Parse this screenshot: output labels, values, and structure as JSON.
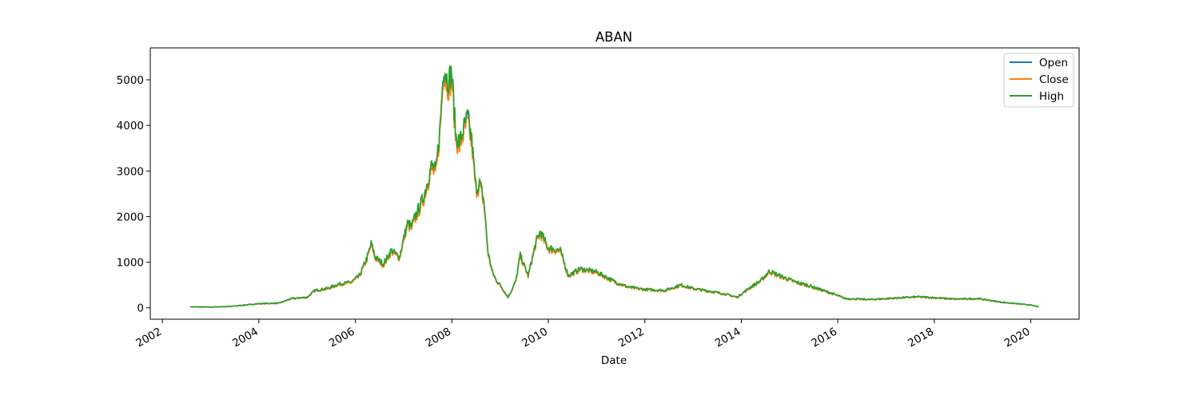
{
  "chart_data": {
    "type": "line",
    "title": "ABAN",
    "xlabel": "Date",
    "ylabel": "",
    "x_tick_labels": [
      "2002",
      "2004",
      "2006",
      "2008",
      "2010",
      "2012",
      "2014",
      "2016",
      "2018",
      "2020"
    ],
    "y_tick_labels": [
      "0",
      "1000",
      "2000",
      "3000",
      "4000",
      "5000"
    ],
    "y_ticks": [
      0,
      1000,
      2000,
      3000,
      4000,
      5000
    ],
    "xlim": [
      "2001-10-01",
      "2021-01-01"
    ],
    "ylim": [
      -250,
      5700
    ],
    "legend": {
      "position": "top-right",
      "entries": [
        "Open",
        "Close",
        "High"
      ]
    },
    "grid": false,
    "colors": {
      "Open": "#1f77b4",
      "Close": "#ff7f0e",
      "High": "#2ca02c"
    },
    "base_series": {
      "x": [
        "2002-08-01",
        "2003-01-01",
        "2003-06-01",
        "2004-01-01",
        "2004-06-01",
        "2004-09-01",
        "2005-01-01",
        "2005-03-01",
        "2005-06-01",
        "2005-09-01",
        "2005-12-01",
        "2006-02-01",
        "2006-04-01",
        "2006-05-01",
        "2006-06-01",
        "2006-08-01",
        "2006-10-01",
        "2006-12-01",
        "2007-01-01",
        "2007-02-01",
        "2007-03-01",
        "2007-04-01",
        "2007-06-01",
        "2007-08-01",
        "2007-09-01",
        "2007-10-01",
        "2007-11-01",
        "2007-12-01",
        "2008-01-01",
        "2008-02-01",
        "2008-03-01",
        "2008-04-01",
        "2008-05-01",
        "2008-06-01",
        "2008-07-01",
        "2008-08-01",
        "2008-09-01",
        "2008-10-01",
        "2008-11-01",
        "2008-12-01",
        "2009-01-01",
        "2009-03-01",
        "2009-04-01",
        "2009-05-01",
        "2009-06-01",
        "2009-08-01",
        "2009-10-01",
        "2009-11-01",
        "2010-01-01",
        "2010-04-01",
        "2010-06-01",
        "2010-09-01",
        "2011-01-01",
        "2011-06-01",
        "2011-09-01",
        "2012-01-01",
        "2012-06-01",
        "2012-10-01",
        "2013-01-01",
        "2013-06-01",
        "2013-09-01",
        "2013-12-01",
        "2014-03-01",
        "2014-06-01",
        "2014-08-01",
        "2014-11-01",
        "2015-03-01",
        "2015-06-01",
        "2015-12-01",
        "2016-03-01",
        "2016-09-01",
        "2017-03-01",
        "2017-09-01",
        "2018-01-01",
        "2018-06-01",
        "2018-12-01",
        "2019-06-01",
        "2020-01-01",
        "2020-03-01"
      ],
      "y": [
        20,
        15,
        30,
        90,
        100,
        200,
        230,
        380,
        420,
        520,
        560,
        700,
        1100,
        1400,
        1100,
        950,
        1250,
        1100,
        1500,
        1850,
        1750,
        2000,
        2400,
        3100,
        2950,
        3800,
        5300,
        4900,
        5100,
        3700,
        3600,
        3900,
        4150,
        3600,
        2600,
        2700,
        2300,
        1200,
        800,
        600,
        500,
        230,
        400,
        600,
        1150,
        700,
        1450,
        1650,
        1300,
        1250,
        700,
        850,
        780,
        550,
        450,
        400,
        380,
        500,
        420,
        350,
        300,
        230,
        430,
        600,
        800,
        680,
        550,
        480,
        300,
        200,
        180,
        210,
        240,
        220,
        190,
        200,
        120,
        60,
        20
      ]
    },
    "series": [
      {
        "name": "Open",
        "offset": 0
      },
      {
        "name": "Close",
        "offset": -60
      },
      {
        "name": "High",
        "offset": 40
      }
    ]
  }
}
